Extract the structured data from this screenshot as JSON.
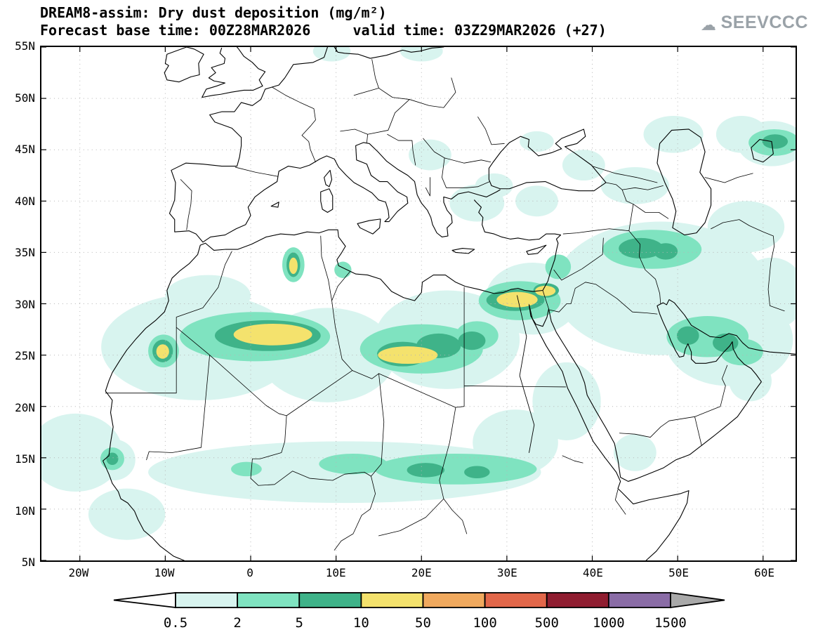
{
  "header": {
    "title_line1": "DREAM8-assim: Dry dust deposition (mg/m²)",
    "title_line2": "Forecast base time: 00Z28MAR2026     valid time: 03Z29MAR2026 (+27)",
    "logo": {
      "text": "SEEVCCC",
      "icon": "cloud-icon",
      "color": "#9aa2a8"
    }
  },
  "map": {
    "lon_range": [
      -24.5,
      63.8
    ],
    "lat_range": [
      5,
      55
    ],
    "lat_ticks": [
      {
        "label": "55N",
        "value": 55
      },
      {
        "label": "50N",
        "value": 50
      },
      {
        "label": "45N",
        "value": 45
      },
      {
        "label": "40N",
        "value": 40
      },
      {
        "label": "35N",
        "value": 35
      },
      {
        "label": "30N",
        "value": 30
      },
      {
        "label": "25N",
        "value": 25
      },
      {
        "label": "20N",
        "value": 20
      },
      {
        "label": "15N",
        "value": 15
      },
      {
        "label": "10N",
        "value": 10
      },
      {
        "label": "5N",
        "value": 5
      }
    ],
    "lon_ticks": [
      {
        "label": "20W",
        "value": -20
      },
      {
        "label": "10W",
        "value": -10
      },
      {
        "label": "0",
        "value": 0
      },
      {
        "label": "10E",
        "value": 10
      },
      {
        "label": "20E",
        "value": 20
      },
      {
        "label": "30E",
        "value": 30
      },
      {
        "label": "40E",
        "value": 40
      },
      {
        "label": "50E",
        "value": 50
      },
      {
        "label": "60E",
        "value": 60
      }
    ]
  },
  "colorbar": {
    "labels": [
      "0.5",
      "2",
      "5",
      "10",
      "50",
      "100",
      "500",
      "1000",
      "1500"
    ],
    "underflow_color": "#ffffff",
    "overflow_color": "#a9a9a9"
  },
  "chart_data": {
    "type": "heatmap",
    "title": "DREAM8-assim: Dry dust deposition (mg/m²)",
    "subtitle": "Forecast base time: 00Z28MAR2026  valid time: 03Z29MAR2026 (+27)",
    "variable": "Dry dust deposition",
    "units": "mg/m²",
    "base_time": "00Z28MAR2026",
    "valid_time": "03Z29MAR2026",
    "forecast_hour": "+27",
    "lon_range": [
      -24.5,
      63.8
    ],
    "lat_range": [
      5,
      55
    ],
    "contour_levels": [
      0.5,
      2,
      5,
      10,
      50,
      100,
      500,
      1000,
      1500
    ],
    "level_fill_colors": [
      "#d8f4ef",
      "#7fe3c0",
      "#3fb389",
      "#f4e26d",
      "#f0a95e",
      "#e2674a",
      "#8f1d30",
      "#8a6ca6"
    ],
    "plume_format": [
      "lon",
      "lat",
      "rx_deg",
      "ry_deg",
      "level"
    ],
    "plumes": [
      [
        -6,
        25.8,
        11.5,
        5.2,
        1
      ],
      [
        -5,
        30.8,
        5,
        2,
        1
      ],
      [
        9,
        25,
        8,
        4.6,
        1
      ],
      [
        23,
        26.5,
        8.5,
        4.8,
        1
      ],
      [
        33,
        30.5,
        5.5,
        3.5,
        1
      ],
      [
        11,
        13.6,
        23,
        3,
        1
      ],
      [
        31,
        16.5,
        5,
        3.2,
        1
      ],
      [
        37,
        20.5,
        4,
        3.8,
        1
      ],
      [
        48,
        31.5,
        12.5,
        6.5,
        1
      ],
      [
        56,
        26.5,
        7.5,
        4.5,
        1
      ],
      [
        61,
        31,
        4,
        3.5,
        1
      ],
      [
        58,
        37.5,
        4.5,
        2.5,
        1
      ],
      [
        45,
        15.5,
        2.5,
        1.8,
        1
      ],
      [
        -20.5,
        15.5,
        5.5,
        3.8,
        1
      ],
      [
        -14.5,
        9.5,
        4.5,
        2.5,
        1
      ],
      [
        -16,
        14.8,
        2.5,
        2,
        1
      ],
      [
        26.5,
        39.8,
        3.2,
        1.8,
        1
      ],
      [
        28.5,
        41.5,
        2.2,
        1.2,
        1
      ],
      [
        33.5,
        40,
        2.5,
        1.5,
        1
      ],
      [
        39,
        43.5,
        2.5,
        1.5,
        1
      ],
      [
        45,
        41.5,
        4,
        1.8,
        1
      ],
      [
        49.5,
        46.5,
        3.5,
        1.8,
        1
      ],
      [
        57.5,
        46.5,
        3,
        1.8,
        1
      ],
      [
        61,
        45.6,
        4,
        2.2,
        1
      ],
      [
        21,
        44.5,
        2.5,
        1.5,
        1
      ],
      [
        9.5,
        54.6,
        2.2,
        1,
        1
      ],
      [
        20,
        54.6,
        2.5,
        1,
        1
      ],
      [
        33.5,
        45.8,
        2,
        1,
        1
      ],
      [
        58.5,
        22.5,
        2.5,
        2,
        1
      ],
      [
        0.5,
        26.8,
        8.8,
        2.4,
        2
      ],
      [
        20,
        25.6,
        7.2,
        2.4,
        2
      ],
      [
        26.5,
        26.9,
        2.5,
        1.4,
        2
      ],
      [
        24,
        13.9,
        9.5,
        1.5,
        2
      ],
      [
        12,
        14.4,
        4,
        1,
        2
      ],
      [
        -0.5,
        13.9,
        1.8,
        0.7,
        2
      ],
      [
        31.5,
        30.3,
        4.8,
        1.9,
        2
      ],
      [
        36,
        33.6,
        1.5,
        1.2,
        2
      ],
      [
        47,
        35.3,
        5.8,
        1.9,
        2
      ],
      [
        53.5,
        26.8,
        4.8,
        2,
        2
      ],
      [
        57.5,
        25.3,
        2.5,
        1.3,
        2
      ],
      [
        -10.2,
        25.4,
        1.8,
        1.6,
        2
      ],
      [
        5,
        33.8,
        1.3,
        1.7,
        2
      ],
      [
        -16.2,
        14.9,
        1.4,
        1.1,
        2
      ],
      [
        61.3,
        45.7,
        3,
        1.3,
        2
      ],
      [
        10.8,
        33.3,
        1,
        0.8,
        2
      ],
      [
        2,
        26.9,
        6.2,
        1.5,
        3
      ],
      [
        17.8,
        25.1,
        3,
        1.2,
        3
      ],
      [
        22,
        25.9,
        2.6,
        1.2,
        3
      ],
      [
        25.9,
        26.4,
        1.6,
        0.9,
        3
      ],
      [
        31,
        30.35,
        3.4,
        1.05,
        3
      ],
      [
        34.6,
        31.3,
        1.5,
        0.7,
        3
      ],
      [
        45.7,
        35.4,
        2.6,
        1,
        3
      ],
      [
        48.6,
        35.1,
        1.4,
        0.8,
        3
      ],
      [
        51.2,
        26.9,
        1.3,
        0.9,
        3
      ],
      [
        55.6,
        26.2,
        1.5,
        0.9,
        3
      ],
      [
        61.4,
        45.8,
        1.5,
        0.7,
        3
      ],
      [
        -10.3,
        25.4,
        1.2,
        1.1,
        3
      ],
      [
        5,
        33.8,
        0.8,
        1.2,
        3
      ],
      [
        -16.2,
        14.9,
        0.7,
        0.6,
        3
      ],
      [
        20.5,
        13.8,
        2.2,
        0.7,
        3
      ],
      [
        26.5,
        13.6,
        1.5,
        0.6,
        3
      ],
      [
        2.6,
        27,
        4.6,
        1.05,
        4
      ],
      [
        18.4,
        25,
        3.5,
        0.85,
        4
      ],
      [
        31.2,
        30.4,
        2.4,
        0.75,
        4
      ],
      [
        34.5,
        31.25,
        1.2,
        0.5,
        4
      ],
      [
        -10.3,
        25.35,
        0.75,
        0.7,
        4
      ],
      [
        5,
        33.7,
        0.5,
        0.8,
        4
      ]
    ]
  }
}
